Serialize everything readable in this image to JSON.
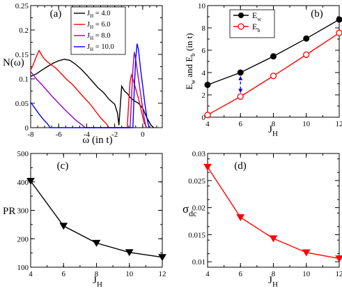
{
  "chart_data": [
    {
      "type": "line",
      "panel_label": "(a)",
      "xlabel": "ω (in t)",
      "ylabel": "N(ω)",
      "xlim": [
        -8,
        1.4
      ],
      "ylim": [
        0,
        0.25
      ],
      "xticks": [
        -8,
        -6,
        -4,
        -2,
        0
      ],
      "yticks": [
        0,
        0.05,
        0.1,
        0.15,
        0.2,
        0.25
      ],
      "ytick_labels": [
        "0",
        "0.05",
        "0.1",
        "0.15",
        "0.2",
        "0.25"
      ],
      "legend_position": "top-center",
      "series": [
        {
          "name": "J_H = 4.0",
          "name_base": "J",
          "name_sub": "H",
          "name_rest": " = 4.0",
          "color": "#000000",
          "points": [
            [
              -8,
              0.105
            ],
            [
              -7.6,
              0.11
            ],
            [
              -7.2,
              0.118
            ],
            [
              -6.8,
              0.125
            ],
            [
              -6.4,
              0.132
            ],
            [
              -6,
              0.137
            ],
            [
              -5.6,
              0.14
            ],
            [
              -5.2,
              0.138
            ],
            [
              -4.8,
              0.13
            ],
            [
              -4.4,
              0.12
            ],
            [
              -4,
              0.108
            ],
            [
              -3.6,
              0.095
            ],
            [
              -3.2,
              0.082
            ],
            [
              -2.8,
              0.072
            ],
            [
              -2.4,
              0.058
            ],
            [
              -2,
              0.048
            ],
            [
              -1.8,
              0.03
            ],
            [
              -1.7,
              0.005
            ],
            [
              -1.6,
              0.045
            ],
            [
              -1.5,
              0.085
            ],
            [
              -1.3,
              0.075
            ],
            [
              -1.1,
              0.07
            ],
            [
              -0.9,
              0.062
            ],
            [
              -0.6,
              0.055
            ],
            [
              -0.3,
              0.05
            ],
            [
              0,
              0.04
            ],
            [
              0.3,
              0.02
            ],
            [
              0.6,
              0.005
            ],
            [
              0.8,
              0.0
            ]
          ]
        },
        {
          "name": "J_H = 6.0",
          "name_base": "J",
          "name_sub": "H",
          "name_rest": " = 6.0",
          "color": "#ff0000",
          "points": [
            [
              -8,
              0.118
            ],
            [
              -7.8,
              0.13
            ],
            [
              -7.6,
              0.145
            ],
            [
              -7.4,
              0.158
            ],
            [
              -7.2,
              0.148
            ],
            [
              -7,
              0.14
            ],
            [
              -6.6,
              0.13
            ],
            [
              -6.2,
              0.122
            ],
            [
              -5.8,
              0.11
            ],
            [
              -5.4,
              0.098
            ],
            [
              -5,
              0.088
            ],
            [
              -4.6,
              0.075
            ],
            [
              -4.2,
              0.062
            ],
            [
              -3.8,
              0.05
            ],
            [
              -3.4,
              0.035
            ],
            [
              -3,
              0.02
            ],
            [
              -2.6,
              0.008
            ],
            [
              -2.4,
              0.0
            ],
            [
              -1.1,
              0.0
            ],
            [
              -1.0,
              0.05
            ],
            [
              -0.9,
              0.095
            ],
            [
              -0.8,
              0.108
            ],
            [
              -0.7,
              0.1
            ],
            [
              -0.5,
              0.08
            ],
            [
              -0.3,
              0.06
            ],
            [
              -0.1,
              0.035
            ],
            [
              0.1,
              0.01
            ],
            [
              0.3,
              0.0
            ]
          ]
        },
        {
          "name": "J_H = 8.0",
          "name_base": "J",
          "name_sub": "H",
          "name_rest": " = 8.0",
          "color": "#9a00c8",
          "points": [
            [
              -8,
              0.115
            ],
            [
              -7.6,
              0.1
            ],
            [
              -7.2,
              0.088
            ],
            [
              -6.8,
              0.075
            ],
            [
              -6.4,
              0.062
            ],
            [
              -6,
              0.05
            ],
            [
              -5.6,
              0.038
            ],
            [
              -5.2,
              0.027
            ],
            [
              -4.8,
              0.016
            ],
            [
              -4.4,
              0.007
            ],
            [
              -4.1,
              0.0
            ],
            [
              -0.9,
              0.0
            ],
            [
              -0.8,
              0.06
            ],
            [
              -0.7,
              0.12
            ],
            [
              -0.6,
              0.155
            ],
            [
              -0.5,
              0.14
            ],
            [
              -0.35,
              0.11
            ],
            [
              -0.2,
              0.08
            ],
            [
              -0.05,
              0.05
            ],
            [
              0.1,
              0.02
            ],
            [
              0.25,
              0.0
            ]
          ]
        },
        {
          "name": "J_H = 10.0",
          "name_base": "J",
          "name_sub": "H",
          "name_rest": " = 10.0",
          "color": "#0000ff",
          "points": [
            [
              -8,
              0.052
            ],
            [
              -7.7,
              0.04
            ],
            [
              -7.4,
              0.028
            ],
            [
              -7.1,
              0.017
            ],
            [
              -6.8,
              0.008
            ],
            [
              -6.6,
              0.0
            ],
            [
              -0.7,
              0.0
            ],
            [
              -0.6,
              0.08
            ],
            [
              -0.5,
              0.14
            ],
            [
              -0.4,
              0.172
            ],
            [
              -0.3,
              0.16
            ],
            [
              -0.15,
              0.12
            ],
            [
              0,
              0.085
            ],
            [
              0.15,
              0.05
            ],
            [
              0.3,
              0.02
            ],
            [
              0.45,
              0.0
            ]
          ]
        }
      ]
    },
    {
      "type": "line",
      "panel_label": "(b)",
      "xlabel": "J_H",
      "xlabel_base": "J",
      "xlabel_sub": "H",
      "ylabel": "E_w and E_b (in t)",
      "xlim": [
        4,
        12
      ],
      "ylim": [
        0,
        10
      ],
      "xticks": [
        4,
        6,
        8,
        10,
        12
      ],
      "yticks": [
        0,
        2,
        4,
        6,
        8,
        10
      ],
      "legend_position": "top-left",
      "series": [
        {
          "name": "E_w",
          "name_base": "E",
          "name_sub": "w",
          "color": "#000000",
          "marker": "filled-circle",
          "x": [
            4,
            6,
            8,
            10,
            12
          ],
          "values": [
            2.9,
            4.0,
            5.45,
            7.05,
            8.75
          ]
        },
        {
          "name": "E_b",
          "name_base": "E",
          "name_sub": "b",
          "color": "#ff0000",
          "marker": "open-circle",
          "x": [
            4,
            6,
            8,
            10,
            12
          ],
          "values": [
            0.2,
            1.85,
            3.7,
            5.6,
            7.55
          ]
        }
      ],
      "annotation": {
        "type": "dashed-double-arrow",
        "color": "#0000ff",
        "x": 6,
        "from": 1.85,
        "to": 4.0
      }
    },
    {
      "type": "line",
      "panel_label": "(c)",
      "xlabel": "J_H",
      "xlabel_base": "J",
      "xlabel_sub": "H",
      "ylabel": "PR",
      "xlim": [
        4,
        12
      ],
      "ylim": [
        100,
        500
      ],
      "xticks": [
        4,
        6,
        8,
        10,
        12
      ],
      "yticks": [
        100,
        200,
        300,
        400,
        500
      ],
      "series": [
        {
          "color": "#000000",
          "marker": "down-triangle",
          "x": [
            4,
            6,
            8,
            10,
            12
          ],
          "values": [
            403,
            245,
            185,
            152,
            135
          ]
        }
      ]
    },
    {
      "type": "line",
      "panel_label": "(d)",
      "xlabel": "J_H",
      "xlabel_base": "J",
      "xlabel_sub": "H",
      "ylabel": "σ_dc",
      "ylabel_base": "σ",
      "ylabel_sub": "dc",
      "xlim": [
        4,
        12
      ],
      "ylim": [
        0.009,
        0.03
      ],
      "xticks": [
        4,
        6,
        8,
        10,
        12
      ],
      "yticks": [
        0.01,
        0.015,
        0.02,
        0.025,
        0.03
      ],
      "ytick_labels": [
        "0.01",
        "0.015",
        "0.02",
        "0.025",
        "0.03"
      ],
      "series": [
        {
          "color": "#ff0000",
          "marker": "down-triangle",
          "x": [
            4,
            6,
            8,
            10,
            12
          ],
          "values": [
            0.0275,
            0.0182,
            0.0143,
            0.0117,
            0.0106
          ]
        }
      ]
    }
  ]
}
